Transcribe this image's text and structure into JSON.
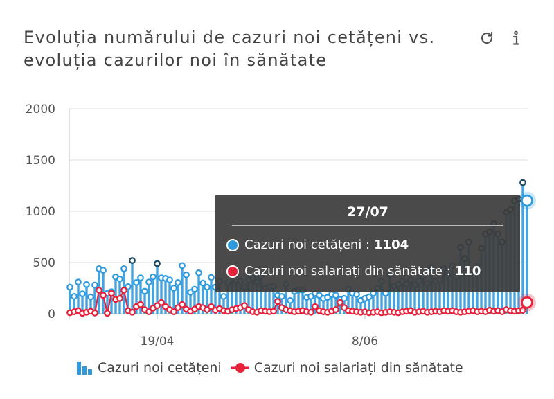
{
  "title": "Evoluția numărului de cazuri noi cetățeni vs. evoluția cazurilor noi în sănătate",
  "icons": {
    "refresh": "refresh-icon",
    "info": "info-icon"
  },
  "colors": {
    "series1": "#2f9bde",
    "series1_dark": "#1a4a63",
    "series2": "#e8213b",
    "tooltip_bg": "#3c3c3c"
  },
  "tooltip": {
    "date": "27/07",
    "rows": [
      {
        "label": "Cazuri noi cetățeni :",
        "value": "1104"
      },
      {
        "label": "Cazuri noi salariați din sănătate :",
        "value": "110"
      }
    ]
  },
  "legend": [
    {
      "label": "Cazuri noi cetățeni",
      "icon": "bar-chart-icon"
    },
    {
      "label": "Cazuri noi salariați din sănătate",
      "icon": "dot-icon"
    }
  ],
  "chart_data": {
    "type": "bar",
    "title": "Evoluția numărului de cazuri noi cetățeni vs. evoluția cazurilor noi în sănătate",
    "xlabel": "",
    "ylabel": "",
    "ylim": [
      0,
      2000
    ],
    "yticks": [
      "0",
      "500",
      "1000",
      "1500",
      "2000"
    ],
    "xtick_labels": [
      {
        "label": "19/04",
        "index": 21
      },
      {
        "label": "8/06",
        "index": 71
      }
    ],
    "grid": true,
    "legend_position": "bottom",
    "series": [
      {
        "name": "Cazuri noi cetățeni",
        "style": "lollipop",
        "values": [
          260,
          170,
          310,
          195,
          285,
          165,
          280,
          440,
          425,
          200,
          215,
          360,
          340,
          440,
          265,
          520,
          305,
          350,
          220,
          310,
          360,
          490,
          350,
          345,
          330,
          250,
          305,
          470,
          380,
          210,
          240,
          400,
          300,
          260,
          355,
          260,
          320,
          170,
          300,
          430,
          330,
          320,
          260,
          330,
          350,
          310,
          370,
          250,
          260,
          270,
          180,
          170,
          290,
          130,
          220,
          230,
          230,
          160,
          170,
          200,
          180,
          150,
          160,
          190,
          180,
          140,
          150,
          240,
          200,
          190,
          130,
          150,
          165,
          200,
          250,
          320,
          200,
          380,
          270,
          290,
          320,
          290,
          330,
          280,
          320,
          370,
          300,
          450,
          320,
          330,
          440,
          380,
          470,
          360,
          650,
          540,
          700,
          430,
          460,
          640,
          780,
          800,
          880,
          780,
          700,
          990,
          1020,
          1100,
          1120,
          1280,
          1104
        ],
        "highlight_last": 1104
      },
      {
        "name": "Cazuri noi salariați din sănătate",
        "style": "line-dots",
        "values": [
          10,
          20,
          30,
          5,
          15,
          25,
          8,
          230,
          180,
          5,
          200,
          140,
          150,
          230,
          30,
          15,
          70,
          90,
          40,
          20,
          55,
          80,
          110,
          70,
          40,
          20,
          60,
          90,
          45,
          25,
          45,
          70,
          60,
          40,
          70,
          35,
          50,
          30,
          25,
          40,
          50,
          60,
          80,
          40,
          20,
          15,
          30,
          25,
          20,
          25,
          120,
          60,
          40,
          30,
          20,
          25,
          30,
          20,
          15,
          70,
          30,
          20,
          15,
          25,
          40,
          110,
          60,
          30,
          25,
          20,
          15,
          20,
          10,
          15,
          20,
          10,
          15,
          20,
          15,
          10,
          20,
          25,
          30,
          15,
          20,
          25,
          15,
          20,
          25,
          20,
          30,
          25,
          30,
          20,
          15,
          20,
          25,
          30,
          20,
          25,
          20,
          35,
          25,
          30,
          20,
          40,
          30,
          25,
          30,
          35,
          110
        ],
        "highlight_last": 110
      }
    ]
  }
}
